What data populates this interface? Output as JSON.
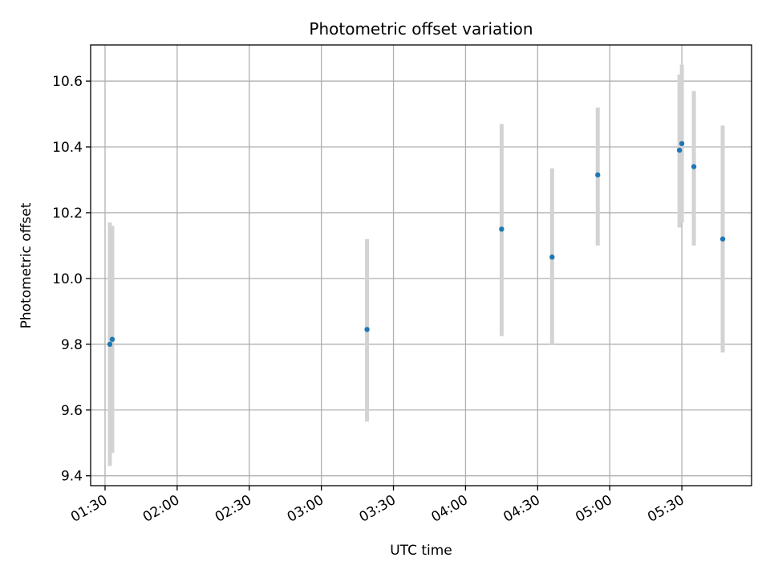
{
  "chart_data": {
    "type": "scatter",
    "title": "Photometric offset variation",
    "xlabel": "UTC time",
    "ylabel": "Photometric offset",
    "x_axis_type": "time",
    "xlim": [
      "01:24",
      "05:59"
    ],
    "ylim": [
      9.37,
      10.71
    ],
    "grid": true,
    "x_ticks": [
      "01:30",
      "02:00",
      "02:30",
      "03:00",
      "03:30",
      "04:00",
      "04:30",
      "05:00",
      "05:30"
    ],
    "y_ticks": [
      "9.4",
      "9.6",
      "9.8",
      "10.0",
      "10.2",
      "10.4",
      "10.6"
    ],
    "marker_color": "#1f77b4",
    "errorbar_color": "#d3d3d3",
    "points": [
      {
        "x": "01:32",
        "y": 9.8,
        "ylow": 9.43,
        "yhigh": 10.17
      },
      {
        "x": "01:33",
        "y": 9.815,
        "ylow": 9.47,
        "yhigh": 10.16
      },
      {
        "x": "03:19",
        "y": 9.845,
        "ylow": 9.565,
        "yhigh": 10.12
      },
      {
        "x": "04:15",
        "y": 10.15,
        "ylow": 9.825,
        "yhigh": 10.47
      },
      {
        "x": "04:36",
        "y": 10.065,
        "ylow": 9.8,
        "yhigh": 10.335
      },
      {
        "x": "04:55",
        "y": 10.315,
        "ylow": 10.1,
        "yhigh": 10.52
      },
      {
        "x": "05:29",
        "y": 10.39,
        "ylow": 10.155,
        "yhigh": 10.62
      },
      {
        "x": "05:30",
        "y": 10.41,
        "ylow": 10.17,
        "yhigh": 10.65
      },
      {
        "x": "05:35",
        "y": 10.34,
        "ylow": 10.1,
        "yhigh": 10.57
      },
      {
        "x": "05:47",
        "y": 10.12,
        "ylow": 9.775,
        "yhigh": 10.465
      }
    ]
  }
}
